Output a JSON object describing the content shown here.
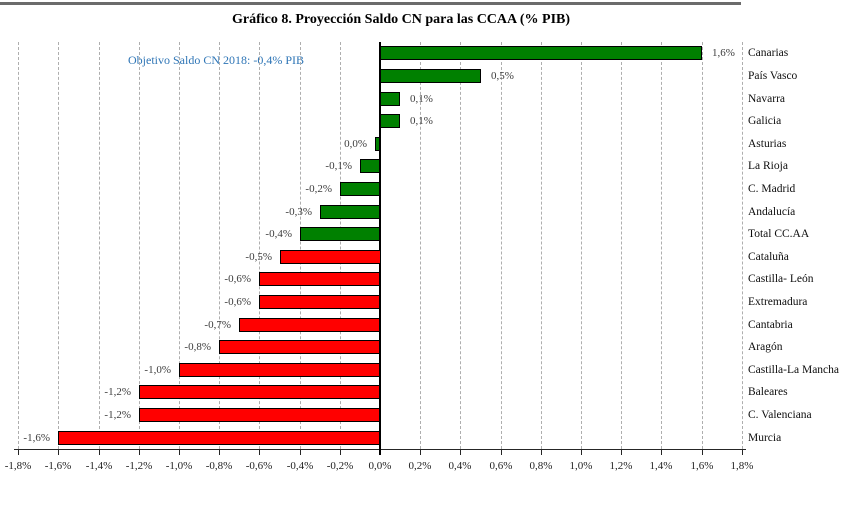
{
  "header": {
    "title": "Gráfico 8. Proyección Saldo CN para las CCAA (% PIB)"
  },
  "annotation": {
    "text": "Objetivo Saldo CN 2018: -0,4% PIB",
    "color": "#2E75B6"
  },
  "colors": {
    "green": "#008000",
    "red": "#FF0000",
    "bar_border": "#000000",
    "grid": "#AEAEAE",
    "axis": "#262626"
  },
  "chart_data": {
    "type": "bar",
    "orientation": "horizontal",
    "title": "Gráfico 8. Proyección Saldo CN para las CCAA (% PIB)",
    "annotation": "Objetivo Saldo CN 2018: -0,4% PIB",
    "xlabel": "",
    "ylabel": "",
    "xlim": [
      -1.8,
      1.8
    ],
    "x_tick_step": 0.2,
    "grid": "vertical-dashed",
    "legend": "none",
    "value_labels_position": "outside-end",
    "categories_position": "right",
    "x_tick_labels": [
      "-1,8%",
      "-1,6%",
      "-1,4%",
      "-1,2%",
      "-1,0%",
      "-0,8%",
      "-0,6%",
      "-0,4%",
      "-0,2%",
      "0,0%",
      "0,2%",
      "0,4%",
      "0,6%",
      "0,8%",
      "1,0%",
      "1,2%",
      "1,4%",
      "1,6%",
      "1,8%"
    ],
    "categories": [
      "Canarias",
      "País Vasco",
      "Navarra",
      "Galicia",
      "Asturias",
      "La Rioja",
      "C. Madrid",
      "Andalucía",
      "Total CC.AA",
      "Cataluña",
      "Castilla- León",
      "Extremadura",
      "Cantabria",
      "Aragón",
      "Castilla-La Mancha",
      "Baleares",
      "C. Valenciana",
      "Murcia"
    ],
    "values": [
      1.6,
      0.5,
      0.1,
      0.1,
      0.0,
      -0.1,
      -0.2,
      -0.3,
      -0.4,
      -0.5,
      -0.6,
      -0.6,
      -0.7,
      -0.8,
      -1.0,
      -1.2,
      -1.2,
      -1.6
    ],
    "value_labels": [
      "1,6%",
      "0,5%",
      "0,1%",
      "0,1%",
      "0,0%",
      "-0,1%",
      "-0,2%",
      "-0,3%",
      "-0,4%",
      "-0,5%",
      "-0,6%",
      "-0,6%",
      "-0,7%",
      "-0,8%",
      "-1,0%",
      "-1,2%",
      "-1,2%",
      "-1,6%"
    ],
    "bar_colors": [
      "green",
      "green",
      "green",
      "green",
      "green",
      "green",
      "green",
      "green",
      "green",
      "red",
      "red",
      "red",
      "red",
      "red",
      "red",
      "red",
      "red",
      "red"
    ]
  }
}
